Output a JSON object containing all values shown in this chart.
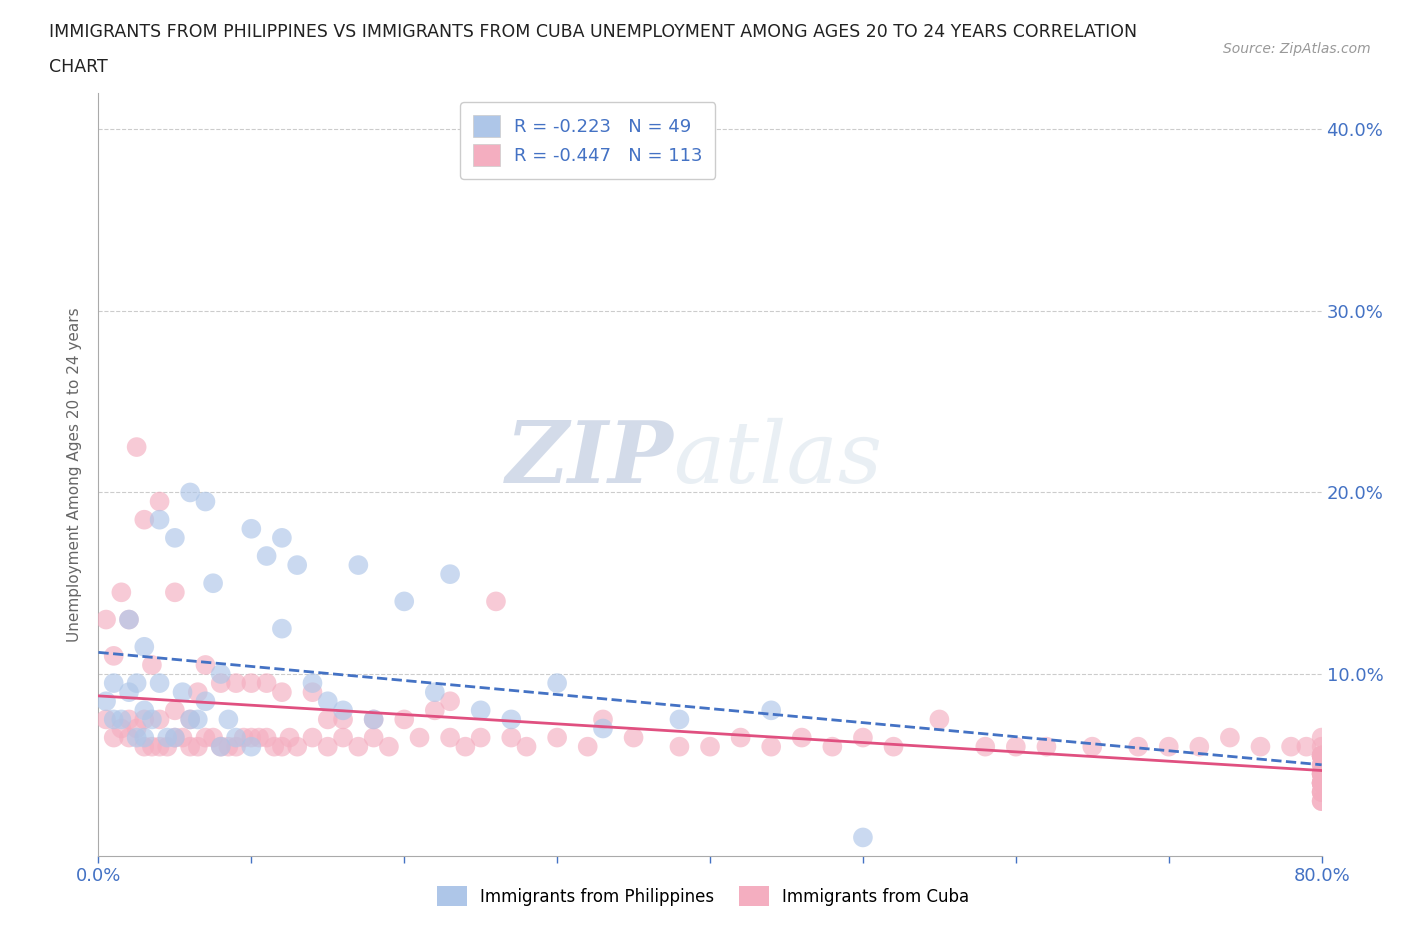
{
  "title_line1": "IMMIGRANTS FROM PHILIPPINES VS IMMIGRANTS FROM CUBA UNEMPLOYMENT AMONG AGES 20 TO 24 YEARS CORRELATION",
  "title_line2": "CHART",
  "source_text": "Source: ZipAtlas.com",
  "ylabel": "Unemployment Among Ages 20 to 24 years",
  "xlim": [
    0.0,
    0.8
  ],
  "ylim": [
    0.0,
    0.42
  ],
  "color_philippines": "#aec6e8",
  "color_cuba": "#f4aec0",
  "line_color_philippines": "#4472c4",
  "line_color_cuba": "#e05080",
  "R_philippines": -0.223,
  "N_philippines": 49,
  "R_cuba": -0.447,
  "N_cuba": 113,
  "legend_label_philippines": "Immigrants from Philippines",
  "legend_label_cuba": "Immigrants from Cuba",
  "watermark_zip": "ZIP",
  "watermark_atlas": "atlas",
  "philippines_x": [
    0.005,
    0.01,
    0.01,
    0.015,
    0.02,
    0.02,
    0.025,
    0.025,
    0.03,
    0.03,
    0.03,
    0.035,
    0.04,
    0.04,
    0.045,
    0.05,
    0.05,
    0.055,
    0.06,
    0.06,
    0.065,
    0.07,
    0.07,
    0.075,
    0.08,
    0.08,
    0.085,
    0.09,
    0.1,
    0.1,
    0.11,
    0.12,
    0.12,
    0.13,
    0.14,
    0.15,
    0.16,
    0.17,
    0.18,
    0.2,
    0.22,
    0.23,
    0.25,
    0.27,
    0.3,
    0.33,
    0.38,
    0.44,
    0.5
  ],
  "philippines_y": [
    0.085,
    0.075,
    0.095,
    0.075,
    0.09,
    0.13,
    0.065,
    0.095,
    0.065,
    0.08,
    0.115,
    0.075,
    0.095,
    0.185,
    0.065,
    0.065,
    0.175,
    0.09,
    0.075,
    0.2,
    0.075,
    0.085,
    0.195,
    0.15,
    0.06,
    0.1,
    0.075,
    0.065,
    0.06,
    0.18,
    0.165,
    0.125,
    0.175,
    0.16,
    0.095,
    0.085,
    0.08,
    0.16,
    0.075,
    0.14,
    0.09,
    0.155,
    0.08,
    0.075,
    0.095,
    0.07,
    0.075,
    0.08,
    0.01
  ],
  "cuba_x": [
    0.005,
    0.005,
    0.01,
    0.01,
    0.015,
    0.015,
    0.02,
    0.02,
    0.02,
    0.025,
    0.025,
    0.03,
    0.03,
    0.03,
    0.035,
    0.035,
    0.04,
    0.04,
    0.04,
    0.045,
    0.05,
    0.05,
    0.05,
    0.055,
    0.06,
    0.06,
    0.065,
    0.065,
    0.07,
    0.07,
    0.075,
    0.08,
    0.08,
    0.085,
    0.09,
    0.09,
    0.095,
    0.1,
    0.1,
    0.105,
    0.11,
    0.11,
    0.115,
    0.12,
    0.12,
    0.125,
    0.13,
    0.14,
    0.14,
    0.15,
    0.15,
    0.16,
    0.16,
    0.17,
    0.18,
    0.18,
    0.19,
    0.2,
    0.21,
    0.22,
    0.23,
    0.23,
    0.24,
    0.25,
    0.26,
    0.27,
    0.28,
    0.3,
    0.32,
    0.33,
    0.35,
    0.38,
    0.4,
    0.42,
    0.44,
    0.46,
    0.48,
    0.5,
    0.52,
    0.55,
    0.58,
    0.6,
    0.62,
    0.65,
    0.68,
    0.7,
    0.72,
    0.74,
    0.76,
    0.78,
    0.79,
    0.8,
    0.8,
    0.8,
    0.8,
    0.8,
    0.8,
    0.8,
    0.8,
    0.8,
    0.8,
    0.8,
    0.8,
    0.8,
    0.8,
    0.8,
    0.8,
    0.8,
    0.8,
    0.8,
    0.8,
    0.8,
    0.8,
    0.8
  ],
  "cuba_y": [
    0.075,
    0.13,
    0.065,
    0.11,
    0.07,
    0.145,
    0.065,
    0.075,
    0.13,
    0.07,
    0.225,
    0.06,
    0.075,
    0.185,
    0.06,
    0.105,
    0.06,
    0.075,
    0.195,
    0.06,
    0.065,
    0.08,
    0.145,
    0.065,
    0.06,
    0.075,
    0.06,
    0.09,
    0.065,
    0.105,
    0.065,
    0.06,
    0.095,
    0.06,
    0.06,
    0.095,
    0.065,
    0.065,
    0.095,
    0.065,
    0.065,
    0.095,
    0.06,
    0.06,
    0.09,
    0.065,
    0.06,
    0.065,
    0.09,
    0.06,
    0.075,
    0.065,
    0.075,
    0.06,
    0.065,
    0.075,
    0.06,
    0.075,
    0.065,
    0.08,
    0.065,
    0.085,
    0.06,
    0.065,
    0.14,
    0.065,
    0.06,
    0.065,
    0.06,
    0.075,
    0.065,
    0.06,
    0.06,
    0.065,
    0.06,
    0.065,
    0.06,
    0.065,
    0.06,
    0.075,
    0.06,
    0.06,
    0.06,
    0.06,
    0.06,
    0.06,
    0.06,
    0.065,
    0.06,
    0.06,
    0.06,
    0.06,
    0.065,
    0.055,
    0.055,
    0.055,
    0.055,
    0.055,
    0.05,
    0.05,
    0.045,
    0.045,
    0.045,
    0.045,
    0.04,
    0.04,
    0.04,
    0.04,
    0.04,
    0.035,
    0.035,
    0.035,
    0.03,
    0.03
  ]
}
